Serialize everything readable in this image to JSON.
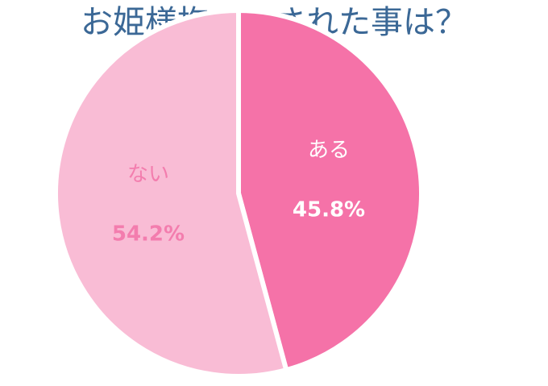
{
  "chart_data": {
    "type": "pie",
    "title": "お姫様抱っこされた事は？",
    "categories": [
      "ある",
      "ない"
    ],
    "values": [
      45.8,
      54.2
    ],
    "value_labels": [
      "45.8%",
      "54.2%"
    ],
    "colors": [
      "#f572a8",
      "#f9bcd5"
    ],
    "label_colors": [
      "#ffffff",
      "#f37dae"
    ]
  }
}
